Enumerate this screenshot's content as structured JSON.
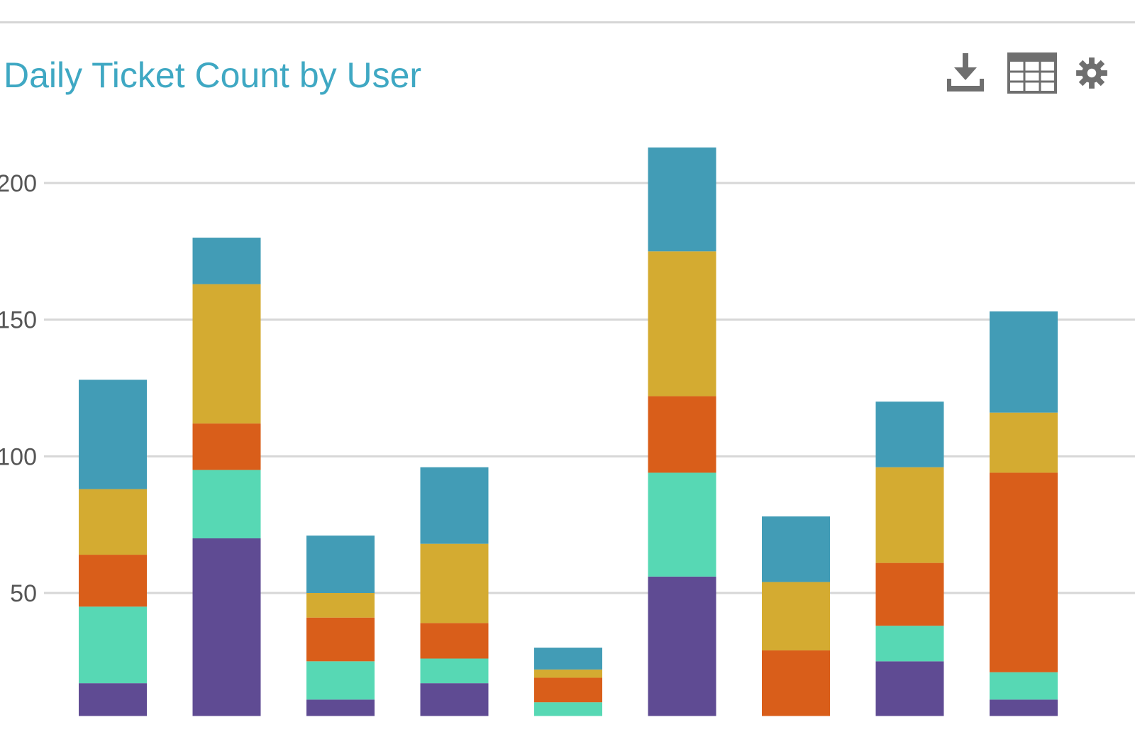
{
  "title": "Daily Ticket Count by User",
  "toolbar": {
    "icons": [
      "download-icon",
      "table-icon",
      "gear-icon"
    ]
  },
  "colors": {
    "title": "#3fa8c3",
    "grid": "#d7d7d7",
    "axis_text": "#555555",
    "series": [
      "#5f4b93",
      "#57d8b4",
      "#d95e1a",
      "#d4ab31",
      "#429cb6"
    ]
  },
  "chart_data": {
    "type": "bar",
    "stacked": true,
    "categories": [
      "",
      "",
      "",
      "",
      "",
      "",
      "",
      "",
      ""
    ],
    "series": [
      {
        "values": [
          12,
          65,
          6,
          12,
          0,
          51,
          0,
          20,
          6
        ]
      },
      {
        "values": [
          28,
          25,
          14,
          9,
          5,
          38,
          0,
          13,
          10
        ]
      },
      {
        "values": [
          19,
          17,
          16,
          13,
          9,
          28,
          24,
          23,
          73
        ]
      },
      {
        "values": [
          24,
          51,
          9,
          29,
          3,
          53,
          25,
          35,
          22
        ]
      },
      {
        "values": [
          40,
          17,
          21,
          28,
          8,
          38,
          24,
          24,
          37
        ]
      }
    ],
    "base_floor": 5,
    "ylim": [
      0,
      215
    ],
    "yticks": [
      50,
      100,
      150,
      200
    ],
    "ytick_labels": [
      "50",
      "100",
      "150",
      "200"
    ],
    "grid": true
  }
}
